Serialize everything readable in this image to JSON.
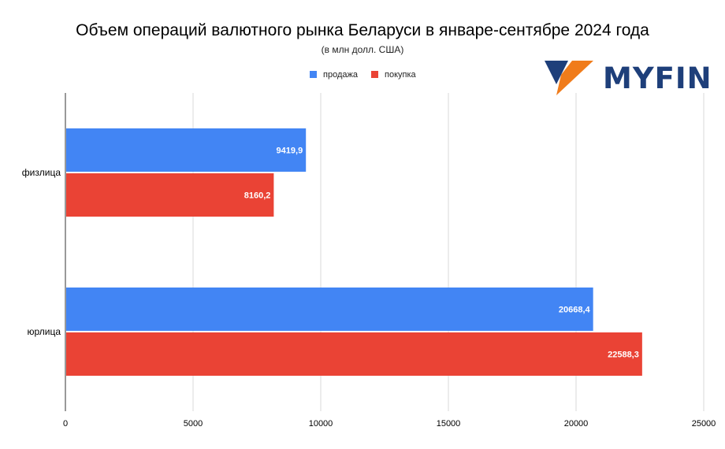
{
  "chart_data": {
    "type": "bar",
    "orientation": "horizontal",
    "title": "Объем операций валютного рынка Беларуси в январе-сентябре 2024 года",
    "subtitle": "(в млн долл. США)",
    "categories": [
      "физлица",
      "юрлица"
    ],
    "series": [
      {
        "name": "продажа",
        "color": "#4285f4",
        "values": [
          9419.9,
          20668.4
        ],
        "labels": [
          "9419,9",
          "20668,4"
        ]
      },
      {
        "name": "покупка",
        "color": "#ea4335",
        "values": [
          8160.2,
          22588.3
        ],
        "labels": [
          "8160,2",
          "22588,3"
        ]
      }
    ],
    "xlim": [
      0,
      25000
    ],
    "xticks": [
      0,
      5000,
      10000,
      15000,
      20000,
      25000
    ],
    "xtick_labels": [
      "0",
      "5000",
      "10000",
      "15000",
      "20000",
      "25000"
    ],
    "grid": true,
    "legend_position": "top-center"
  },
  "logo": {
    "text": "MYFIN",
    "icon": "myfin-logo-icon"
  }
}
